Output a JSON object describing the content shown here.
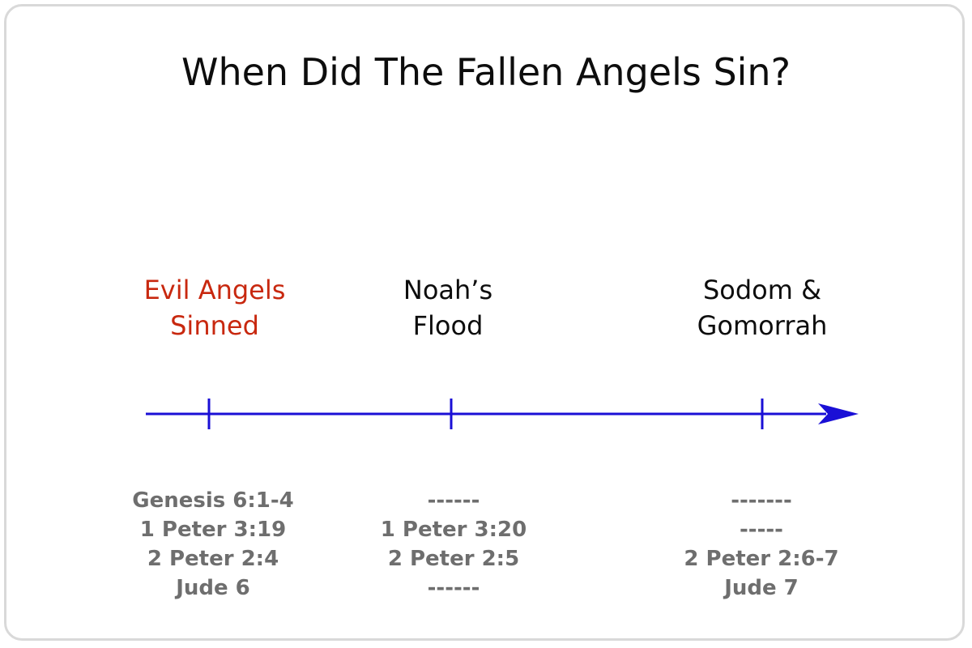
{
  "title": "When Did The Fallen Angels Sin?",
  "colors": {
    "timeline": "#1a0fd6",
    "highlight": "#c8280f",
    "normal_label": "#0d0d0d",
    "references": "#6e6e6e",
    "border": "#d9d9d9"
  },
  "events": [
    {
      "label": "Evil Angels\nSinned",
      "highlighted": true,
      "references": [
        "Genesis 6:1-4",
        "1 Peter 3:19",
        "2 Peter 2:4",
        "Jude 6"
      ]
    },
    {
      "label": "Noah’s\nFlood",
      "highlighted": false,
      "references": [
        "------",
        "1 Peter 3:20",
        "2 Peter 2:5",
        "------"
      ]
    },
    {
      "label": "Sodom &\nGomorrah",
      "highlighted": false,
      "references": [
        "-------",
        "-----",
        "2 Peter 2:6-7",
        "Jude 7"
      ]
    }
  ]
}
